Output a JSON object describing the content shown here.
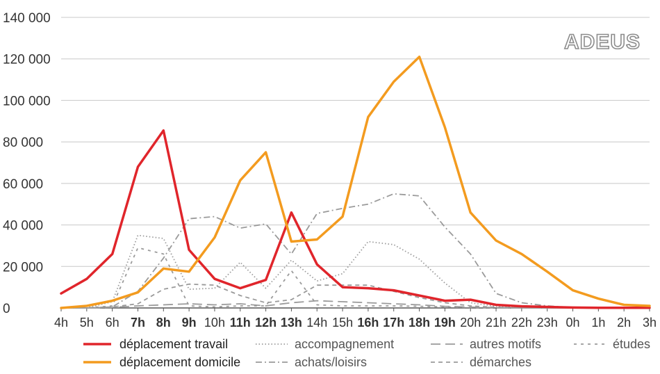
{
  "logo_text": "ADEUS",
  "chart_data": {
    "type": "line",
    "categories": [
      "4h",
      "5h",
      "6h",
      "7h",
      "8h",
      "9h",
      "10h",
      "11h",
      "12h",
      "13h",
      "14h",
      "15h",
      "16h",
      "17h",
      "18h",
      "19h",
      "20h",
      "21h",
      "22h",
      "23h",
      "0h",
      "1h",
      "2h",
      "3h"
    ],
    "bold_categories": [
      "7h",
      "8h",
      "9h",
      "11h",
      "12h",
      "13h",
      "16h",
      "17h",
      "18h",
      "19h"
    ],
    "ylim": [
      0,
      140000
    ],
    "yticks": [
      0,
      20000,
      40000,
      60000,
      80000,
      100000,
      120000,
      140000
    ],
    "ytick_labels": [
      "0",
      "20 000",
      "40 000",
      "60 000",
      "80 000",
      "100 000",
      "120 000",
      "140 000"
    ],
    "grid": "horizontal",
    "legend_position": "bottom",
    "series": [
      {
        "name": "déplacement travail",
        "color": "#e0252b",
        "style": "solid",
        "values": [
          7000,
          14000,
          26000,
          68000,
          85500,
          28000,
          14000,
          9500,
          13500,
          46000,
          21000,
          10000,
          9500,
          8500,
          6000,
          3500,
          4000,
          1500,
          800,
          500,
          200,
          100,
          100,
          100
        ]
      },
      {
        "name": "déplacement domicile",
        "color": "#f39b1f",
        "style": "solid",
        "values": [
          0,
          1000,
          3500,
          7500,
          19000,
          17500,
          34000,
          61500,
          75000,
          32000,
          33000,
          44000,
          92000,
          109000,
          121000,
          87000,
          46000,
          32500,
          26000,
          17500,
          8500,
          4500,
          1500,
          1000
        ]
      },
      {
        "name": "accompagnement",
        "color": "#9a9a9a",
        "style": "dotted",
        "values": [
          0,
          0,
          3000,
          35000,
          33500,
          9000,
          9500,
          22000,
          9500,
          23000,
          13000,
          16500,
          32000,
          30500,
          23500,
          12000,
          2500,
          800,
          300,
          100,
          0,
          0,
          0,
          0
        ]
      },
      {
        "name": "achats/loisirs",
        "color": "#9a9a9a",
        "style": "dashdot",
        "values": [
          0,
          0,
          500,
          8000,
          24000,
          43000,
          44000,
          38500,
          40500,
          26000,
          45500,
          48000,
          50000,
          55000,
          54000,
          39000,
          26000,
          7000,
          2500,
          1000,
          200,
          0,
          0,
          0
        ]
      },
      {
        "name": "autres motifs",
        "color": "#9a9a9a",
        "style": "longdash",
        "values": [
          0,
          0,
          300,
          1000,
          1500,
          2000,
          1500,
          2000,
          1000,
          2500,
          3500,
          3000,
          2500,
          2000,
          1500,
          800,
          400,
          200,
          100,
          0,
          0,
          0,
          0,
          0
        ]
      },
      {
        "name": "démarches",
        "color": "#9a9a9a",
        "style": "dashed",
        "values": [
          0,
          0,
          500,
          2000,
          9000,
          11500,
          11000,
          6000,
          2500,
          4000,
          11000,
          11000,
          11000,
          8000,
          5000,
          2500,
          1000,
          300,
          100,
          0,
          0,
          0,
          0,
          0
        ]
      },
      {
        "name": "études",
        "color": "#9a9a9a",
        "style": "shortdash",
        "values": [
          0,
          0,
          1000,
          29000,
          26000,
          1000,
          500,
          1000,
          1000,
          18000,
          1500,
          1000,
          1000,
          1000,
          800,
          500,
          200,
          100,
          0,
          0,
          0,
          0,
          0,
          0
        ]
      }
    ],
    "legend_order": [
      "déplacement travail",
      "accompagnement",
      "autres motifs",
      "études",
      "déplacement domicile",
      "achats/loisirs",
      "démarches"
    ]
  }
}
